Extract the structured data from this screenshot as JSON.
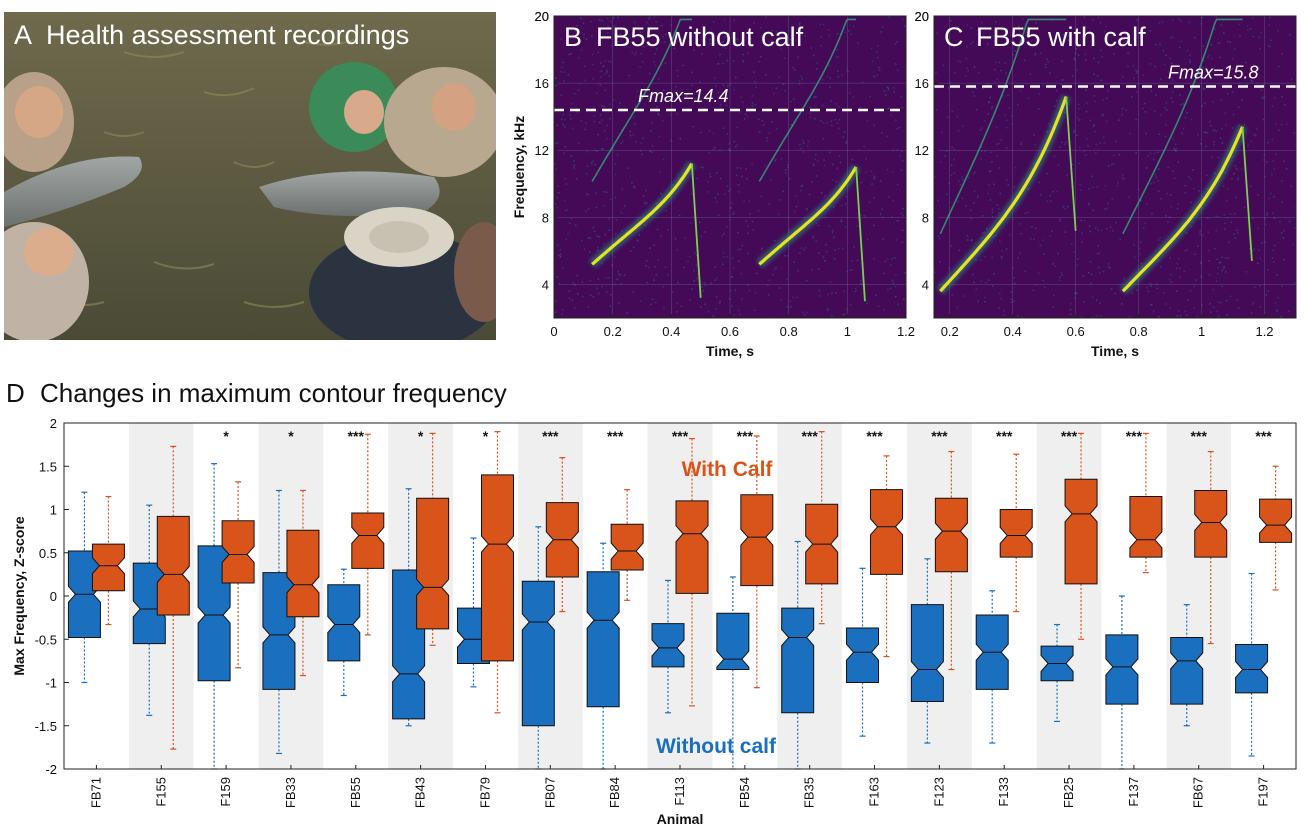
{
  "panelA": {
    "letter": "A",
    "title": "Health assessment  recordings"
  },
  "panelB": {
    "letter": "B",
    "title": "FB55 without calf",
    "fmax_label": "Fmax=14.4",
    "chart_data": {
      "type": "heatmap",
      "xlabel": "Time, s",
      "ylabel": "Frequency, kHz",
      "xlim": [
        0,
        1.2
      ],
      "ylim": [
        2,
        20
      ],
      "xticks": [
        0,
        0.2,
        0.4,
        0.6,
        0.8,
        1,
        1.2
      ],
      "yticks": [
        4,
        8,
        12,
        16,
        20
      ],
      "fmax": 14.4
    }
  },
  "panelC": {
    "letter": "C",
    "title": "FB55 with calf",
    "fmax_label": "Fmax=15.8",
    "chart_data": {
      "type": "heatmap",
      "xlabel": "Time, s",
      "ylabel": "",
      "xlim": [
        0.15,
        1.3
      ],
      "ylim": [
        2,
        20
      ],
      "xticks": [
        0.2,
        0.4,
        0.6,
        0.8,
        1,
        1.2
      ],
      "yticks": [
        4,
        8,
        12,
        16,
        20
      ],
      "fmax": 15.8
    }
  },
  "panelD": {
    "letter": "D",
    "title": "Changes in maximum contour frequency",
    "legend_with": "With Calf",
    "legend_without": "Without calf",
    "colors": {
      "without": "#1a6fbf",
      "with": "#d9541a",
      "band": "#efefef"
    },
    "chart_data": {
      "type": "box",
      "xlabel": "Animal",
      "ylabel": "Max Frequency, Z-score",
      "ylim": [
        -2,
        2
      ],
      "yticks": [
        "-2",
        "-1.5",
        "-1",
        "-0.5",
        "0",
        "0.5",
        "1",
        "1.5",
        "2"
      ],
      "categories": [
        "FB71",
        "F155",
        "F159",
        "FB33",
        "FB55",
        "FB43",
        "FB79",
        "FB07",
        "FB84",
        "F113",
        "FB54",
        "FB35",
        "F163",
        "F123",
        "F133",
        "FB25",
        "F137",
        "FB67",
        "F197"
      ],
      "significance": [
        "",
        "",
        "*",
        "*",
        "***",
        "*",
        "*",
        "***",
        "***",
        "***",
        "***",
        "***",
        "***",
        "***",
        "***",
        "***",
        "***",
        "***",
        "***"
      ],
      "series": [
        {
          "key": "without",
          "boxes": [
            {
              "min": -1.0,
              "q1": -0.48,
              "med": 0.02,
              "q3": 0.52,
              "max": 1.2
            },
            {
              "min": -1.38,
              "q1": -0.55,
              "med": -0.15,
              "q3": 0.38,
              "max": 1.05
            },
            {
              "min": -2.0,
              "q1": -0.98,
              "med": -0.22,
              "q3": 0.58,
              "max": 1.53
            },
            {
              "min": -1.82,
              "q1": -1.08,
              "med": -0.45,
              "q3": 0.27,
              "max": 1.22
            },
            {
              "min": -1.15,
              "q1": -0.75,
              "med": -0.33,
              "q3": 0.13,
              "max": 0.31
            },
            {
              "min": -1.5,
              "q1": -1.42,
              "med": -0.9,
              "q3": 0.3,
              "max": 1.24
            },
            {
              "min": -1.05,
              "q1": -0.78,
              "med": -0.5,
              "q3": -0.14,
              "max": 0.67
            },
            {
              "min": -2.0,
              "q1": -1.5,
              "med": -0.3,
              "q3": 0.17,
              "max": 0.8
            },
            {
              "min": -2.0,
              "q1": -1.28,
              "med": -0.28,
              "q3": 0.28,
              "max": 0.61
            },
            {
              "min": -1.35,
              "q1": -0.82,
              "med": -0.6,
              "q3": -0.32,
              "max": 0.18
            },
            {
              "min": -2.0,
              "q1": -0.85,
              "med": -0.73,
              "q3": -0.2,
              "max": 0.22
            },
            {
              "min": -2.0,
              "q1": -1.35,
              "med": -0.48,
              "q3": -0.14,
              "max": 0.63
            },
            {
              "min": -1.62,
              "q1": -1.0,
              "med": -0.65,
              "q3": -0.37,
              "max": 0.32
            },
            {
              "min": -1.7,
              "q1": -1.22,
              "med": -0.85,
              "q3": -0.1,
              "max": 0.43
            },
            {
              "min": -1.7,
              "q1": -1.08,
              "med": -0.65,
              "q3": -0.22,
              "max": 0.06
            },
            {
              "min": -1.45,
              "q1": -0.98,
              "med": -0.78,
              "q3": -0.58,
              "max": -0.33
            },
            {
              "min": -2.0,
              "q1": -1.25,
              "med": -0.82,
              "q3": -0.45,
              "max": 0.0
            },
            {
              "min": -1.5,
              "q1": -1.25,
              "med": -0.75,
              "q3": -0.48,
              "max": -0.1
            },
            {
              "min": -1.85,
              "q1": -1.12,
              "med": -0.85,
              "q3": -0.56,
              "max": 0.26
            }
          ]
        },
        {
          "key": "with",
          "boxes": [
            {
              "min": -0.33,
              "q1": 0.06,
              "med": 0.35,
              "q3": 0.6,
              "max": 1.15
            },
            {
              "min": -1.77,
              "q1": -0.22,
              "med": 0.25,
              "q3": 0.92,
              "max": 1.73
            },
            {
              "min": -0.83,
              "q1": 0.15,
              "med": 0.48,
              "q3": 0.87,
              "max": 1.32
            },
            {
              "min": -0.92,
              "q1": -0.24,
              "med": 0.13,
              "q3": 0.76,
              "max": 1.22
            },
            {
              "min": -0.45,
              "q1": 0.32,
              "med": 0.7,
              "q3": 0.96,
              "max": 1.87
            },
            {
              "min": -0.57,
              "q1": -0.38,
              "med": 0.1,
              "q3": 1.13,
              "max": 1.88
            },
            {
              "min": -1.35,
              "q1": -0.75,
              "med": 0.6,
              "q3": 1.4,
              "max": 1.9
            },
            {
              "min": -0.18,
              "q1": 0.22,
              "med": 0.65,
              "q3": 1.08,
              "max": 1.6
            },
            {
              "min": -0.05,
              "q1": 0.3,
              "med": 0.52,
              "q3": 0.83,
              "max": 1.23
            },
            {
              "min": -1.27,
              "q1": 0.03,
              "med": 0.72,
              "q3": 1.1,
              "max": 1.82
            },
            {
              "min": -1.06,
              "q1": 0.12,
              "med": 0.68,
              "q3": 1.17,
              "max": 1.85
            },
            {
              "min": -0.32,
              "q1": 0.14,
              "med": 0.6,
              "q3": 1.06,
              "max": 1.9
            },
            {
              "min": -0.7,
              "q1": 0.25,
              "med": 0.8,
              "q3": 1.23,
              "max": 1.62
            },
            {
              "min": -0.85,
              "q1": 0.28,
              "med": 0.75,
              "q3": 1.13,
              "max": 1.67
            },
            {
              "min": -0.18,
              "q1": 0.45,
              "med": 0.7,
              "q3": 1.0,
              "max": 1.64
            },
            {
              "min": -0.5,
              "q1": 0.14,
              "med": 0.95,
              "q3": 1.35,
              "max": 1.88
            },
            {
              "min": 0.27,
              "q1": 0.45,
              "med": 0.65,
              "q3": 1.15,
              "max": 1.88
            },
            {
              "min": -0.55,
              "q1": 0.45,
              "med": 0.85,
              "q3": 1.22,
              "max": 1.67
            },
            {
              "min": 0.07,
              "q1": 0.62,
              "med": 0.82,
              "q3": 1.12,
              "max": 1.5
            }
          ]
        }
      ]
    }
  }
}
